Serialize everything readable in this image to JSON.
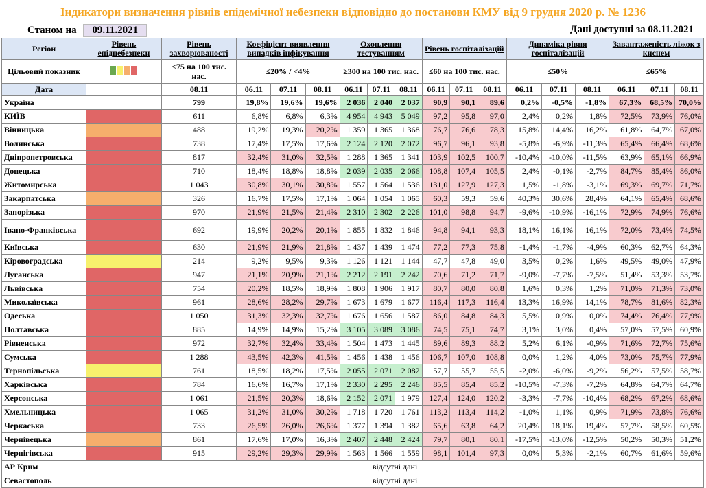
{
  "title": "Індикатори визначення рівнів епідемічної небезпеки відповідно до постанови КМУ від 9 грудня 2020 р. № 1236",
  "as_of_label": "Станом на",
  "as_of_date": "09.11.2021",
  "data_available": "Дані доступні за  08.11.2021",
  "colors": {
    "red": "#E06666",
    "orange": "#F6AE6C",
    "yellow": "#F7F16D",
    "green": "#C6EFCE",
    "pink": "#F8CBCE",
    "title": "#F5A623"
  },
  "header": {
    "region": "Регіон",
    "level": "Рівень епіднебезпеки",
    "incidence": "Рівень захворюваності",
    "detection": "Коефіцієнт виявлення випадків інфікування",
    "testing": "Охоплення тестуванням",
    "hosp": "Рівень госпіталізацій",
    "hosp_dyn": "Динаміка рівня госпіталізацій",
    "oxygen": "Завантаженість ліжок з киснем",
    "target_label": "Цільовий показник",
    "target_incidence": "<75 на 100 тис. нас.",
    "target_detection": "≤20% / <4%",
    "target_testing": "≥300 на 100 тис. нас.",
    "target_hosp": "≤60 на 100 тис. нас.",
    "target_hosp_dyn": "≤50%",
    "target_oxygen": "≤65%",
    "date_label": "Дата",
    "d1": "06.11",
    "d2": "07.11",
    "d3": "08.11",
    "level_swatches": [
      "#6AA84F",
      "#F7F16D",
      "#F6AE6C",
      "#E06666"
    ]
  },
  "rows": [
    {
      "name": "Україна",
      "level": "",
      "inc": "799",
      "det": [
        "19,8%",
        "19,6%",
        "19,6%"
      ],
      "test": [
        "2 036",
        "2 040",
        "2 037"
      ],
      "hosp": [
        "90,9",
        "90,1",
        "89,6"
      ],
      "dyn": [
        "0,2%",
        "-0,5%",
        "-1,8%"
      ],
      "oxy": [
        "67,3%",
        "68,5%",
        "70,0%"
      ]
    },
    {
      "name": "КИЇВ",
      "level": "red",
      "inc": "611",
      "det": [
        "6,8%",
        "6,8%",
        "6,3%"
      ],
      "test": [
        "4 954",
        "4 943",
        "5 049"
      ],
      "hosp": [
        "97,2",
        "95,8",
        "97,0"
      ],
      "dyn": [
        "2,4%",
        "0,2%",
        "1,8%"
      ],
      "oxy": [
        "72,5%",
        "73,9%",
        "76,0%"
      ]
    },
    {
      "name": "Вінницька",
      "level": "orange",
      "inc": "488",
      "det": [
        "19,2%",
        "19,3%",
        "20,2%"
      ],
      "test": [
        "1 359",
        "1 365",
        "1 368"
      ],
      "hosp": [
        "76,7",
        "76,6",
        "78,3"
      ],
      "dyn": [
        "15,8%",
        "14,4%",
        "16,2%"
      ],
      "oxy": [
        "61,8%",
        "64,7%",
        "67,0%"
      ]
    },
    {
      "name": "Волинська",
      "level": "red",
      "inc": "738",
      "det": [
        "17,4%",
        "17,5%",
        "17,6%"
      ],
      "test": [
        "2 124",
        "2 120",
        "2 072"
      ],
      "hosp": [
        "96,7",
        "96,1",
        "93,8"
      ],
      "dyn": [
        "-5,8%",
        "-6,9%",
        "-11,3%"
      ],
      "oxy": [
        "65,4%",
        "66,4%",
        "68,6%"
      ]
    },
    {
      "name": "Дніпропетровська",
      "level": "red",
      "inc": "817",
      "det": [
        "32,4%",
        "31,0%",
        "32,5%"
      ],
      "test": [
        "1 288",
        "1 365",
        "1 341"
      ],
      "hosp": [
        "103,9",
        "102,5",
        "100,7"
      ],
      "dyn": [
        "-10,4%",
        "-10,0%",
        "-11,5%"
      ],
      "oxy": [
        "63,9%",
        "65,1%",
        "66,9%"
      ]
    },
    {
      "name": "Донецька",
      "level": "red",
      "inc": "710",
      "det": [
        "18,4%",
        "18,8%",
        "18,8%"
      ],
      "test": [
        "2 039",
        "2 035",
        "2 066"
      ],
      "hosp": [
        "108,8",
        "107,4",
        "105,5"
      ],
      "dyn": [
        "2,4%",
        "-0,1%",
        "-2,7%"
      ],
      "oxy": [
        "84,7%",
        "85,4%",
        "86,0%"
      ]
    },
    {
      "name": "Житомирська",
      "level": "red",
      "inc": "1 043",
      "det": [
        "30,8%",
        "30,1%",
        "30,8%"
      ],
      "test": [
        "1 557",
        "1 564",
        "1 536"
      ],
      "hosp": [
        "131,0",
        "127,9",
        "127,3"
      ],
      "dyn": [
        "1,5%",
        "-1,8%",
        "-3,1%"
      ],
      "oxy": [
        "69,3%",
        "69,7%",
        "71,7%"
      ]
    },
    {
      "name": "Закарпатська",
      "level": "orange",
      "inc": "326",
      "det": [
        "16,7%",
        "17,5%",
        "17,1%"
      ],
      "test": [
        "1 064",
        "1 054",
        "1 065"
      ],
      "hosp": [
        "60,3",
        "59,3",
        "59,6"
      ],
      "dyn": [
        "40,3%",
        "30,6%",
        "28,4%"
      ],
      "oxy": [
        "64,1%",
        "65,4%",
        "68,6%"
      ]
    },
    {
      "name": "Запорізька",
      "level": "red",
      "inc": "970",
      "det": [
        "21,9%",
        "21,5%",
        "21,4%"
      ],
      "test": [
        "2 310",
        "2 302",
        "2 226"
      ],
      "hosp": [
        "101,0",
        "98,8",
        "94,7"
      ],
      "dyn": [
        "-9,6%",
        "-10,9%",
        "-16,1%"
      ],
      "oxy": [
        "72,9%",
        "74,9%",
        "76,6%"
      ]
    },
    {
      "name": "Івано-Франківська",
      "level": "red",
      "inc": "692",
      "det": [
        "19,9%",
        "20,2%",
        "20,1%"
      ],
      "test": [
        "1 855",
        "1 832",
        "1 846"
      ],
      "hosp": [
        "94,8",
        "94,1",
        "93,3"
      ],
      "dyn": [
        "18,1%",
        "16,1%",
        "16,1%"
      ],
      "oxy": [
        "72,0%",
        "73,4%",
        "74,5%"
      ]
    },
    {
      "name": "Київська",
      "level": "red",
      "inc": "630",
      "det": [
        "21,9%",
        "21,9%",
        "21,8%"
      ],
      "test": [
        "1 437",
        "1 439",
        "1 474"
      ],
      "hosp": [
        "77,2",
        "77,3",
        "75,8"
      ],
      "dyn": [
        "-1,4%",
        "-1,7%",
        "-4,9%"
      ],
      "oxy": [
        "60,3%",
        "62,7%",
        "64,3%"
      ]
    },
    {
      "name": "Кіровоградська",
      "level": "yellow",
      "inc": "214",
      "det": [
        "9,2%",
        "9,5%",
        "9,3%"
      ],
      "test": [
        "1 126",
        "1 121",
        "1 144"
      ],
      "hosp": [
        "47,7",
        "47,8",
        "49,0"
      ],
      "dyn": [
        "3,5%",
        "0,2%",
        "1,6%"
      ],
      "oxy": [
        "49,5%",
        "49,0%",
        "47,9%"
      ]
    },
    {
      "name": "Луганська",
      "level": "red",
      "inc": "947",
      "det": [
        "21,1%",
        "20,9%",
        "21,1%"
      ],
      "test": [
        "2 212",
        "2 191",
        "2 242"
      ],
      "hosp": [
        "70,6",
        "71,2",
        "71,7"
      ],
      "dyn": [
        "-9,0%",
        "-7,7%",
        "-7,5%"
      ],
      "oxy": [
        "51,4%",
        "53,3%",
        "53,7%"
      ]
    },
    {
      "name": "Львівська",
      "level": "red",
      "inc": "754",
      "det": [
        "20,2%",
        "18,5%",
        "18,9%"
      ],
      "test": [
        "1 808",
        "1 906",
        "1 917"
      ],
      "hosp": [
        "80,7",
        "80,0",
        "80,8"
      ],
      "dyn": [
        "1,6%",
        "0,3%",
        "1,2%"
      ],
      "oxy": [
        "71,0%",
        "71,3%",
        "73,0%"
      ]
    },
    {
      "name": "Миколаївська",
      "level": "red",
      "inc": "961",
      "det": [
        "28,6%",
        "28,2%",
        "29,7%"
      ],
      "test": [
        "1 673",
        "1 679",
        "1 677"
      ],
      "hosp": [
        "116,4",
        "117,3",
        "116,4"
      ],
      "dyn": [
        "13,3%",
        "16,9%",
        "14,1%"
      ],
      "oxy": [
        "78,7%",
        "81,6%",
        "82,3%"
      ]
    },
    {
      "name": "Одеська",
      "level": "red",
      "inc": "1 050",
      "det": [
        "31,3%",
        "32,3%",
        "32,7%"
      ],
      "test": [
        "1 676",
        "1 656",
        "1 587"
      ],
      "hosp": [
        "86,0",
        "84,8",
        "84,3"
      ],
      "dyn": [
        "5,5%",
        "0,9%",
        "0,0%"
      ],
      "oxy": [
        "74,4%",
        "76,4%",
        "77,9%"
      ]
    },
    {
      "name": "Полтавська",
      "level": "red",
      "inc": "885",
      "det": [
        "14,9%",
        "14,9%",
        "15,2%"
      ],
      "test": [
        "3 105",
        "3 089",
        "3 086"
      ],
      "hosp": [
        "74,5",
        "75,1",
        "74,7"
      ],
      "dyn": [
        "3,1%",
        "3,0%",
        "0,4%"
      ],
      "oxy": [
        "57,0%",
        "57,5%",
        "60,9%"
      ]
    },
    {
      "name": "Рівненська",
      "level": "red",
      "inc": "972",
      "det": [
        "32,7%",
        "32,4%",
        "33,4%"
      ],
      "test": [
        "1 504",
        "1 473",
        "1 445"
      ],
      "hosp": [
        "89,6",
        "89,3",
        "88,2"
      ],
      "dyn": [
        "5,2%",
        "6,1%",
        "-0,9%"
      ],
      "oxy": [
        "71,6%",
        "72,7%",
        "75,6%"
      ]
    },
    {
      "name": "Сумська",
      "level": "red",
      "inc": "1 288",
      "det": [
        "43,5%",
        "42,3%",
        "41,5%"
      ],
      "test": [
        "1 456",
        "1 438",
        "1 456"
      ],
      "hosp": [
        "106,7",
        "107,0",
        "108,8"
      ],
      "dyn": [
        "0,0%",
        "1,2%",
        "4,0%"
      ],
      "oxy": [
        "73,0%",
        "75,7%",
        "77,9%"
      ]
    },
    {
      "name": "Тернопільська",
      "level": "yellow",
      "inc": "761",
      "det": [
        "18,5%",
        "18,2%",
        "17,5%"
      ],
      "test": [
        "2 055",
        "2 071",
        "2 082"
      ],
      "hosp": [
        "57,7",
        "55,7",
        "55,5"
      ],
      "dyn": [
        "-2,0%",
        "-6,0%",
        "-9,2%"
      ],
      "oxy": [
        "56,2%",
        "57,5%",
        "58,7%"
      ]
    },
    {
      "name": "Харківська",
      "level": "red",
      "inc": "784",
      "det": [
        "16,6%",
        "16,7%",
        "17,1%"
      ],
      "test": [
        "2 330",
        "2 295",
        "2 246"
      ],
      "hosp": [
        "85,5",
        "85,4",
        "85,2"
      ],
      "dyn": [
        "-10,5%",
        "-7,3%",
        "-7,2%"
      ],
      "oxy": [
        "64,8%",
        "64,7%",
        "64,7%"
      ]
    },
    {
      "name": "Херсонська",
      "level": "red",
      "inc": "1 061",
      "det": [
        "21,5%",
        "20,3%",
        "18,6%"
      ],
      "test": [
        "2 152",
        "2 071",
        "1 979"
      ],
      "hosp": [
        "127,4",
        "124,0",
        "120,2"
      ],
      "dyn": [
        "-3,3%",
        "-7,7%",
        "-10,4%"
      ],
      "oxy": [
        "68,2%",
        "67,2%",
        "68,6%"
      ]
    },
    {
      "name": "Хмельницька",
      "level": "red",
      "inc": "1 065",
      "det": [
        "31,2%",
        "31,0%",
        "30,2%"
      ],
      "test": [
        "1 718",
        "1 720",
        "1 761"
      ],
      "hosp": [
        "113,2",
        "113,4",
        "114,2"
      ],
      "dyn": [
        "-1,0%",
        "1,1%",
        "0,9%"
      ],
      "oxy": [
        "71,9%",
        "73,8%",
        "76,6%"
      ]
    },
    {
      "name": "Черкаська",
      "level": "red",
      "inc": "733",
      "det": [
        "26,5%",
        "26,0%",
        "26,6%"
      ],
      "test": [
        "1 377",
        "1 394",
        "1 382"
      ],
      "hosp": [
        "65,6",
        "63,8",
        "64,2"
      ],
      "dyn": [
        "20,4%",
        "18,1%",
        "19,4%"
      ],
      "oxy": [
        "57,7%",
        "58,5%",
        "60,5%"
      ]
    },
    {
      "name": "Чернівецька",
      "level": "orange",
      "inc": "861",
      "det": [
        "17,6%",
        "17,0%",
        "16,3%"
      ],
      "test": [
        "2 407",
        "2 448",
        "2 424"
      ],
      "hosp": [
        "79,7",
        "80,1",
        "80,1"
      ],
      "dyn": [
        "-17,5%",
        "-13,0%",
        "-12,5%"
      ],
      "oxy": [
        "50,2%",
        "50,3%",
        "51,2%"
      ]
    },
    {
      "name": "Чернігівська",
      "level": "red",
      "inc": "915",
      "det": [
        "29,2%",
        "29,3%",
        "29,9%"
      ],
      "test": [
        "1 563",
        "1 566",
        "1 559"
      ],
      "hosp": [
        "98,1",
        "101,4",
        "97,3"
      ],
      "dyn": [
        "0,0%",
        "5,3%",
        "-2,1%"
      ],
      "oxy": [
        "60,7%",
        "61,6%",
        "59,6%"
      ]
    }
  ],
  "missing_rows": [
    {
      "name": "АР Крим",
      "note": "відсутні дані"
    },
    {
      "name": "Севастополь",
      "note": "відсутні дані"
    }
  ]
}
